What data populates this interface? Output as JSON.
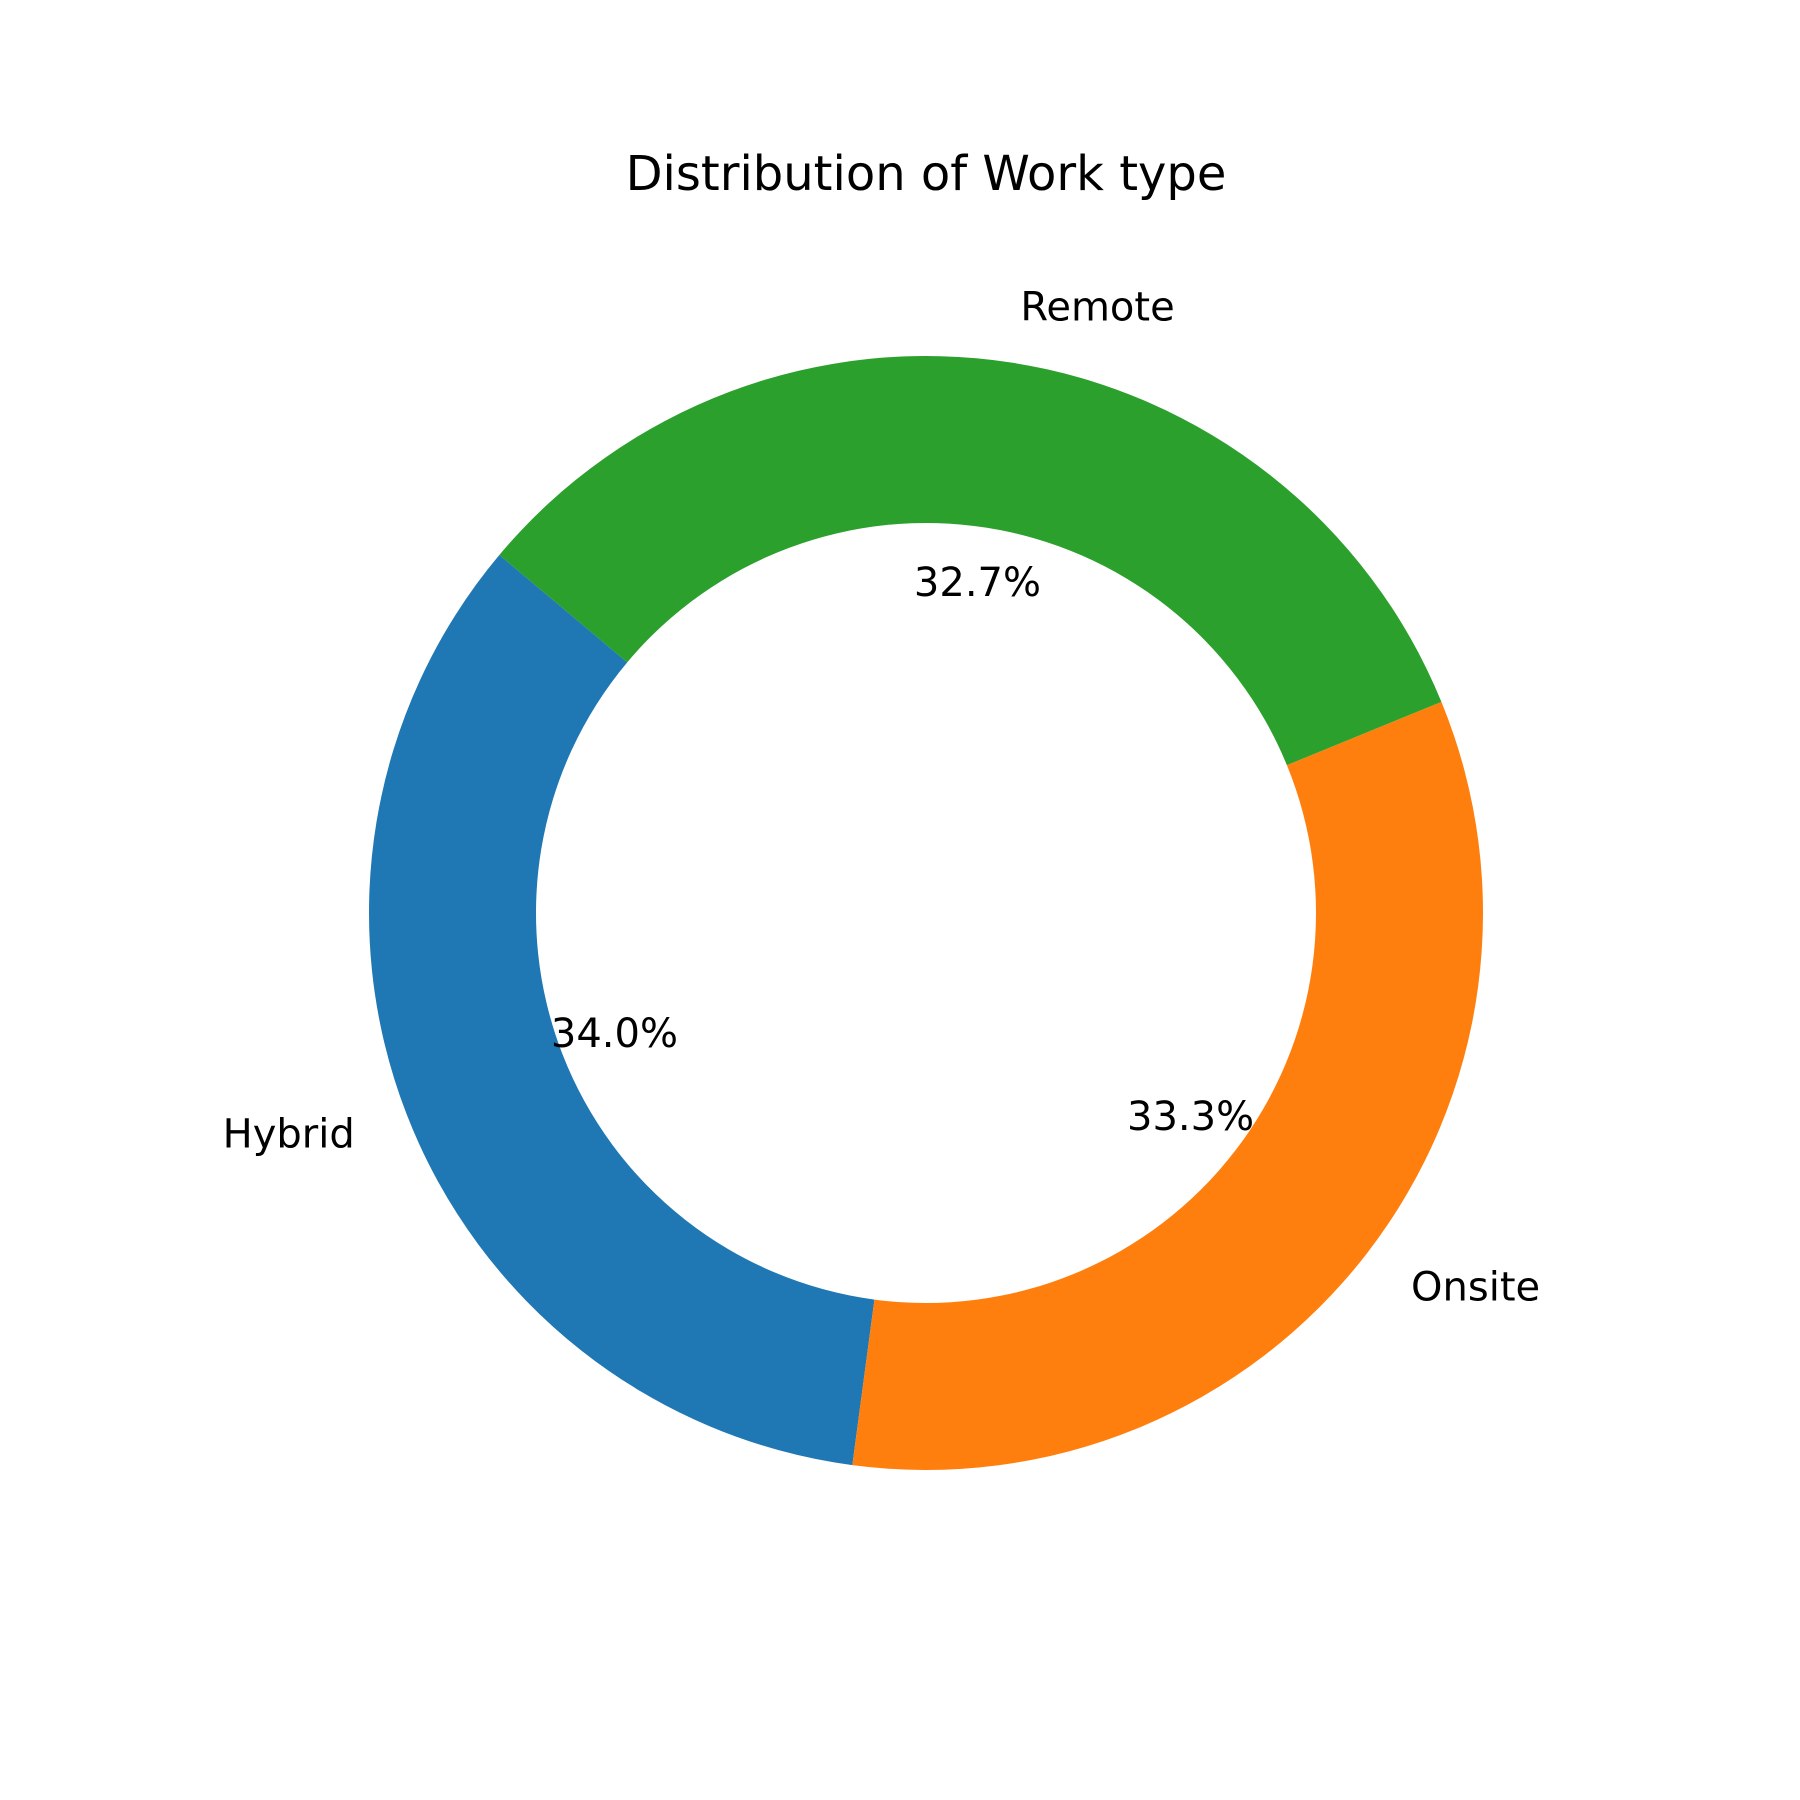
{
  "chart_data": {
    "type": "pie",
    "style": "donut",
    "title": "Distribution of Work type",
    "categories": [
      "Hybrid",
      "Onsite",
      "Remote"
    ],
    "values": [
      34.0,
      33.3,
      32.7
    ],
    "percent_labels": [
      "34.0%",
      "33.3%",
      "32.7%"
    ],
    "colors": [
      "#1f77b4",
      "#ff7f0e",
      "#2ca02c"
    ],
    "start_angle_deg": 140,
    "direction": "counterclockwise",
    "legend": "none"
  }
}
